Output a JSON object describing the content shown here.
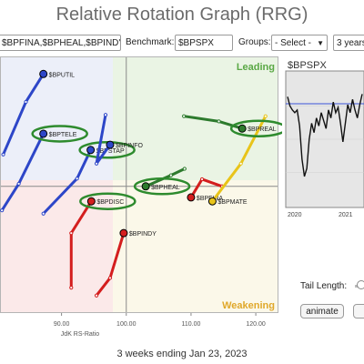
{
  "header": {
    "title": "Relative Rotation Graph (RRG)"
  },
  "controls": {
    "symbols_value": "$BPFINA,$BPHEAL,$BPIND'",
    "benchmark_label": "Benchmark:",
    "benchmark_value": "$BPSPX",
    "groups_label": "Groups:",
    "groups_value": "- Select -",
    "period_value": "3 years"
  },
  "footer": {
    "period_text": "3 weeks ending Jan 23, 2023"
  },
  "side_panel": {
    "symbol": "$BPSPX",
    "tail_label": "Tail Length:",
    "animate_label": "animate"
  },
  "colors": {
    "leading_bg": "#eaf4e4",
    "weakening_bg": "#fbf8e9",
    "lagging_bg": "#fbe9e9",
    "improving_bg": "#eceff9",
    "leading_text": "#5aa845",
    "weakening_text": "#e0a82a",
    "highlight_ring": "#2e8b2e"
  },
  "chart_data": {
    "type": "scatter",
    "title": "",
    "xlabel": "JdK RS-Ratio",
    "ylabel": "",
    "xlim": [
      80.5,
      123.5
    ],
    "ylim": [
      80.5,
      120.0
    ],
    "xticks": [
      "90.00",
      "100.00",
      "110.00",
      "120.00"
    ],
    "x_tick_values": [
      90,
      100,
      110,
      120
    ],
    "center": [
      100,
      100
    ],
    "quadrants": {
      "top_right": "Leading",
      "bottom_right": "Weakening",
      "bottom_left": "",
      "top_left": ""
    },
    "series": [
      {
        "name": "$BPUTIL",
        "color": "#2d46c8",
        "highlighted": false,
        "x": [
          81.0,
          84.5,
          87.2
        ],
        "y": [
          104.9,
          113.0,
          117.3
        ]
      },
      {
        "name": "$BPTELE",
        "color": "#2d46c8",
        "highlighted": true,
        "x": [
          80.8,
          83.4,
          87.2
        ],
        "y": [
          96.3,
          100.4,
          108.1
        ]
      },
      {
        "name": "$BPSTAP",
        "color": "#2d46c8",
        "highlighted": true,
        "x": [
          87.2,
          92.4,
          94.5
        ],
        "y": [
          95.8,
          101.2,
          105.6
        ]
      },
      {
        "name": "$BPINFO",
        "color": "#2d46c8",
        "highlighted": false,
        "x": [
          96.8,
          95.4,
          97.5
        ],
        "y": [
          111.0,
          103.5,
          106.4
        ]
      },
      {
        "name": "$BPHEAL",
        "color": "#2d7a2d",
        "highlighted": true,
        "x": [
          109.0,
          106.9,
          103.0
        ],
        "y": [
          102.7,
          101.7,
          100.0
        ]
      },
      {
        "name": "$BPDISC",
        "color": "#d41e1e",
        "highlighted": true,
        "x": [
          91.5,
          91.5,
          94.6
        ],
        "y": [
          84.4,
          92.8,
          97.7
        ]
      },
      {
        "name": "$BPINDY",
        "color": "#d41e1e",
        "highlighted": false,
        "x": [
          95.4,
          97.5,
          99.6
        ],
        "y": [
          83.2,
          85.9,
          92.8
        ]
      },
      {
        "name": "$BPFINA",
        "color": "#d41e1e",
        "highlighted": false,
        "x": [
          114.8,
          111.7,
          110.0
        ],
        "y": [
          100.0,
          101.1,
          98.3
        ]
      },
      {
        "name": "$BPMATE",
        "color": "#e8c41a",
        "highlighted": false,
        "x": [
          121.5,
          117.7,
          113.3
        ],
        "y": [
          110.8,
          103.5,
          97.7
        ]
      },
      {
        "name": "$BPREAL",
        "color": "#2d7a2d",
        "highlighted": true,
        "x": [
          108.9,
          114.3,
          117.9
        ],
        "y": [
          110.8,
          110.0,
          108.9
        ]
      }
    ]
  },
  "price_chart": {
    "x_labels": [
      "2020",
      "2021"
    ],
    "values": [
      0.82,
      0.75,
      0.72,
      0.7,
      0.72,
      0.6,
      0.35,
      0.22,
      0.28,
      0.5,
      0.62,
      0.55,
      0.66,
      0.6,
      0.7,
      0.64,
      0.58,
      0.72,
      0.66,
      0.78,
      0.7,
      0.74,
      0.62,
      0.48,
      0.62,
      0.76,
      0.7,
      0.8,
      0.72,
      0.66,
      0.76,
      0.84
    ]
  }
}
